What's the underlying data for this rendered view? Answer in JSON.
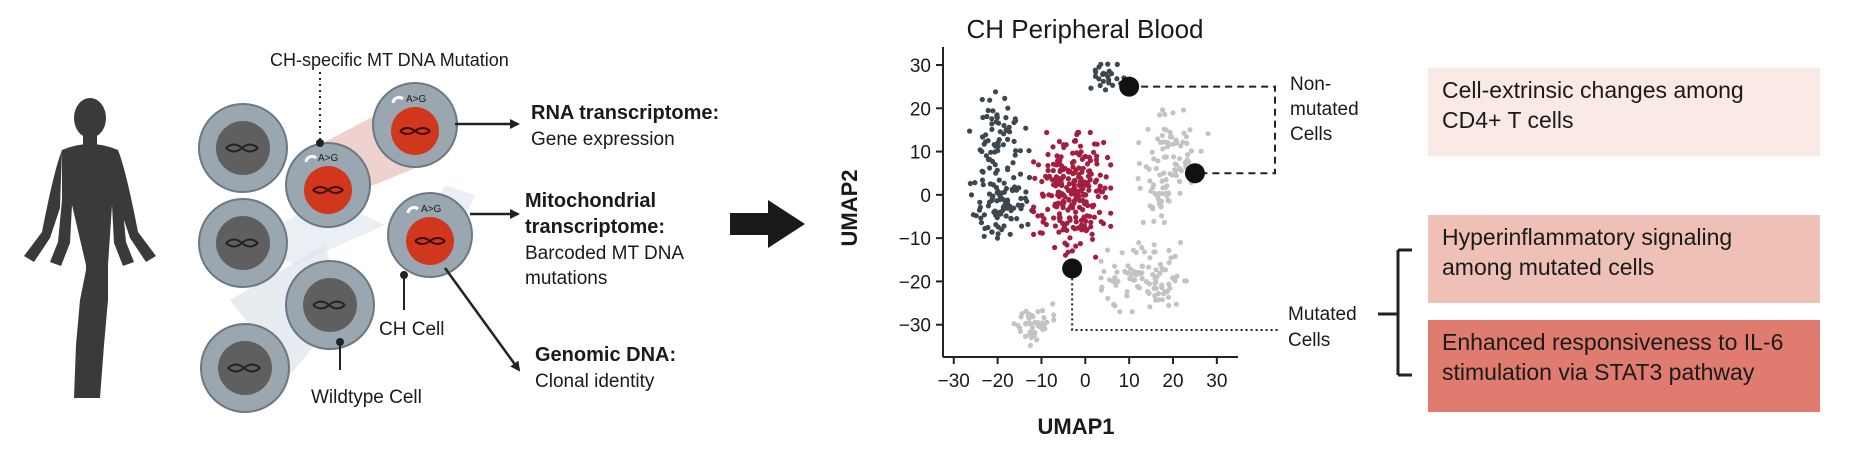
{
  "schematic": {
    "labels": {
      "ch_mutation": "CH-specific MT DNA Mutation",
      "ch_cell": "CH Cell",
      "wildtype_cell": "Wildtype Cell",
      "mutation_code": "A>G"
    },
    "outputs": {
      "rna": {
        "title": "RNA transcriptome:",
        "sub": "Gene expression"
      },
      "mito": {
        "title_line1": "Mitochondrial",
        "title_line2": "transcriptome:",
        "sub_line1": "Barcoded MT DNA",
        "sub_line2": "mutations"
      },
      "genomic": {
        "title": "Genomic DNA:",
        "sub": "Clonal identity"
      }
    }
  },
  "chart_data": {
    "type": "scatter",
    "title": "CH Peripheral Blood",
    "xlabel": "UMAP1",
    "ylabel": "UMAP2",
    "xlim": [
      -32,
      33
    ],
    "ylim": [
      -37,
      33
    ],
    "xticks": [
      -30,
      -20,
      -10,
      0,
      10,
      20,
      30
    ],
    "yticks": [
      30,
      20,
      10,
      0,
      -10,
      -20,
      -30
    ],
    "clusters": [
      {
        "name": "cluster-upper-left",
        "category": "non-mutated",
        "color": "#3d4750",
        "cx": -20,
        "cy": 15,
        "sx": 4,
        "sy": 5.5,
        "n": 55
      },
      {
        "name": "cluster-mid-left",
        "category": "non-mutated",
        "color": "#3d4750",
        "cx": -19,
        "cy": -1,
        "sx": 4.5,
        "sy": 7,
        "n": 100
      },
      {
        "name": "cluster-top-small",
        "category": "non-mutated",
        "color": "#3d4750",
        "cx": 4,
        "cy": 27,
        "sx": 3,
        "sy": 2,
        "n": 25
      },
      {
        "name": "cluster-center-red",
        "category": "mutated",
        "color": "#a51d3f",
        "cx": -3,
        "cy": 0,
        "sx": 5.5,
        "sy": 9,
        "n": 250
      },
      {
        "name": "cluster-right-upper",
        "category": "other",
        "color": "#c3c3c3",
        "cx": 20,
        "cy": 10,
        "sx": 5,
        "sy": 6,
        "n": 70
      },
      {
        "name": "cluster-right-mid",
        "category": "other",
        "color": "#c3c3c3",
        "cx": 17,
        "cy": 0,
        "sx": 3,
        "sy": 4,
        "n": 30
      },
      {
        "name": "cluster-lower-right",
        "category": "other",
        "color": "#c3c3c3",
        "cx": 14,
        "cy": -19,
        "sx": 6.5,
        "sy": 5,
        "n": 95
      },
      {
        "name": "cluster-bottom-left",
        "category": "other",
        "color": "#c3c3c3",
        "cx": -12,
        "cy": -30,
        "sx": 3,
        "sy": 3,
        "n": 45
      }
    ],
    "highlights": [
      {
        "name": "non-mutated-cell-1",
        "x": 10,
        "y": 25,
        "group": "non-mutated"
      },
      {
        "name": "non-mutated-cell-2",
        "x": 25,
        "y": 5,
        "group": "non-mutated"
      },
      {
        "name": "mutated-cell",
        "x": -3,
        "y": -17,
        "group": "mutated"
      }
    ],
    "annotations": {
      "non_mutated_line1": "Non-",
      "non_mutated_line2": "mutated",
      "non_mutated_line3": "Cells",
      "mutated_line1": "Mutated",
      "mutated_line2": "Cells"
    },
    "colors": {
      "non_mutated": "#3d4750",
      "mutated": "#a51d3f",
      "other": "#c3c3c3",
      "highlight": "#111111"
    }
  },
  "findings": [
    {
      "line1": "Cell-extrinsic changes among",
      "line2": "CD4+ T cells",
      "color": "#faeae6"
    },
    {
      "line1": "Hyperinflammatory signaling",
      "line2": "among mutated cells",
      "color": "#efc1b6"
    },
    {
      "line1": "Enhanced responsiveness to IL-6",
      "line2": "stimulation via STAT3 pathway",
      "color": "#e07b6f"
    }
  ]
}
